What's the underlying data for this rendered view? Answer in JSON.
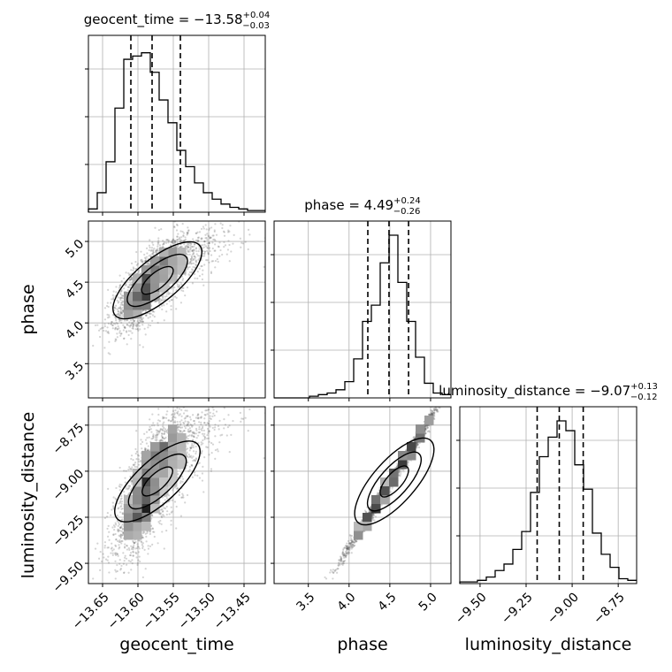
{
  "chart_data": {
    "type": "corner",
    "parameters": [
      {
        "name": "geocent_time",
        "median": -13.58,
        "plus": "+0.04",
        "minus": "−0.03",
        "range": [
          -13.67,
          -13.42
        ],
        "quantiles": [
          -13.61,
          -13.58,
          -13.54
        ],
        "title_main": "geocent_time = −13.58"
      },
      {
        "name": "phase",
        "median": 4.49,
        "plus": "+0.24",
        "minus": "−0.26",
        "range": [
          3.08,
          5.25
        ],
        "quantiles": [
          4.23,
          4.49,
          4.73
        ],
        "title_main": "phase = 4.49"
      },
      {
        "name": "luminosity_distance",
        "median": -9.07,
        "plus": "+0.13",
        "minus": "−0.12",
        "range": [
          -9.61,
          -8.65
        ],
        "quantiles": [
          -9.19,
          -9.07,
          -8.94
        ],
        "title_main": "luminosity_distance = −9.07"
      }
    ],
    "ticks": {
      "geocent_time": [
        {
          "v": -13.65,
          "label": "−13.65"
        },
        {
          "v": -13.6,
          "label": "−13.60"
        },
        {
          "v": -13.55,
          "label": "−13.55"
        },
        {
          "v": -13.5,
          "label": "−13.50"
        },
        {
          "v": -13.45,
          "label": "−13.45"
        }
      ],
      "phase": [
        {
          "v": 3.5,
          "label": "3.5"
        },
        {
          "v": 4.0,
          "label": "4.0"
        },
        {
          "v": 4.5,
          "label": "4.5"
        },
        {
          "v": 5.0,
          "label": "5.0"
        }
      ],
      "luminosity_distance": [
        {
          "v": -9.5,
          "label": "−9.50"
        },
        {
          "v": -9.25,
          "label": "−9.25"
        },
        {
          "v": -9.0,
          "label": "−9.00"
        },
        {
          "v": -8.75,
          "label": "−8.75"
        }
      ]
    },
    "histograms": {
      "geocent_time": [
        0.02,
        0.12,
        0.31,
        0.64,
        0.94,
        0.96,
        0.98,
        0.86,
        0.69,
        0.55,
        0.38,
        0.28,
        0.18,
        0.12,
        0.08,
        0.05,
        0.03,
        0.02,
        0.01,
        0.01
      ],
      "phase": [
        0.0,
        0.0,
        0.0,
        0.0,
        0.01,
        0.02,
        0.03,
        0.05,
        0.1,
        0.24,
        0.47,
        0.57,
        0.83,
        1.0,
        0.71,
        0.47,
        0.25,
        0.09,
        0.03,
        0.02
      ],
      "luminosity_distance": [
        0.01,
        0.01,
        0.02,
        0.04,
        0.08,
        0.12,
        0.21,
        0.32,
        0.56,
        0.78,
        0.9,
        1.0,
        0.94,
        0.73,
        0.58,
        0.31,
        0.18,
        0.1,
        0.03,
        0.02
      ]
    },
    "grid": true
  }
}
